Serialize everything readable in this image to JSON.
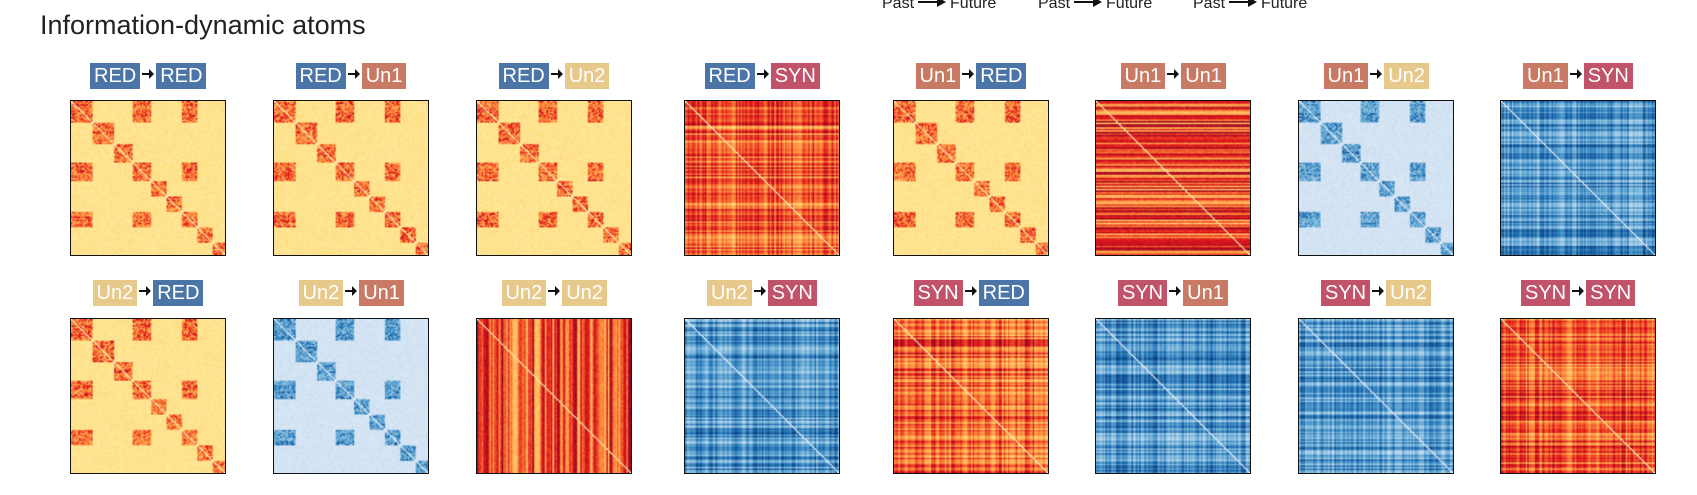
{
  "title": "Information-dynamic atoms",
  "legend_pairs": [
    {
      "from": "Past",
      "to": "Future"
    },
    {
      "from": "Past",
      "to": "Future"
    },
    {
      "from": "Past",
      "to": "Future"
    }
  ],
  "category_colors": {
    "RED": "#4a75a6",
    "Un1": "#c97a64",
    "Un2": "#e8c98c",
    "SYN": "#c0526a"
  },
  "panels": [
    {
      "source": "RED",
      "target": "RED",
      "colormap": "warm",
      "pattern": "block"
    },
    {
      "source": "RED",
      "target": "Un1",
      "colormap": "warm",
      "pattern": "block"
    },
    {
      "source": "RED",
      "target": "Un2",
      "colormap": "warm",
      "pattern": "block"
    },
    {
      "source": "RED",
      "target": "SYN",
      "colormap": "warm",
      "pattern": "stripe-both"
    },
    {
      "source": "Un1",
      "target": "RED",
      "colormap": "warm",
      "pattern": "block"
    },
    {
      "source": "Un1",
      "target": "Un1",
      "colormap": "warm",
      "pattern": "stripe-rows"
    },
    {
      "source": "Un1",
      "target": "Un2",
      "colormap": "cool",
      "pattern": "block"
    },
    {
      "source": "Un1",
      "target": "SYN",
      "colormap": "cool",
      "pattern": "stripe-both"
    },
    {
      "source": "Un2",
      "target": "RED",
      "colormap": "warm",
      "pattern": "block"
    },
    {
      "source": "Un2",
      "target": "Un1",
      "colormap": "cool",
      "pattern": "block"
    },
    {
      "source": "Un2",
      "target": "Un2",
      "colormap": "warm",
      "pattern": "stripe-cols"
    },
    {
      "source": "Un2",
      "target": "SYN",
      "colormap": "cool",
      "pattern": "stripe-both"
    },
    {
      "source": "SYN",
      "target": "RED",
      "colormap": "warm",
      "pattern": "stripe-both"
    },
    {
      "source": "SYN",
      "target": "Un1",
      "colormap": "cool",
      "pattern": "stripe-both"
    },
    {
      "source": "SYN",
      "target": "Un2",
      "colormap": "cool",
      "pattern": "stripe-both"
    },
    {
      "source": "SYN",
      "target": "SYN",
      "colormap": "warm",
      "pattern": "stripe-both"
    }
  ]
}
